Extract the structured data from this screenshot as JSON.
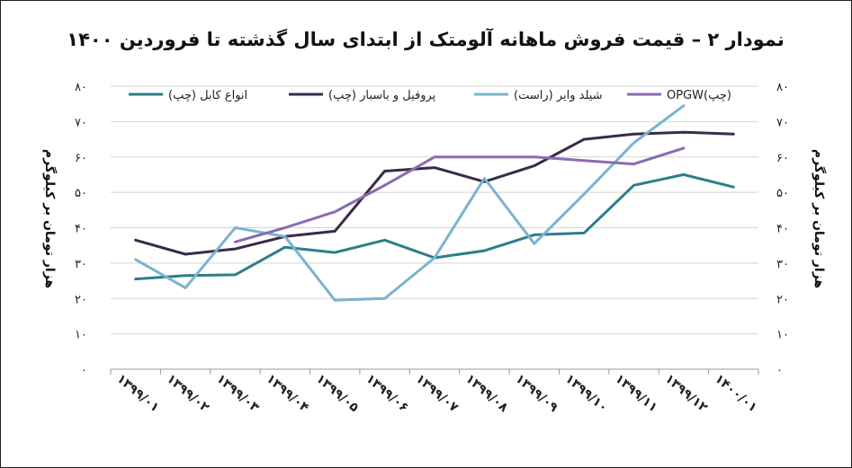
{
  "chart_data": {
    "type": "line",
    "title": "نمودار ۲ – قیمت فروش ماهانه آلومتک از ابتدای سال گذشته تا فروردین ۱۴۰۰",
    "ylabel_left": "هزار تومان بر کیلوگرم",
    "ylabel_right": "هزار تومان بر کیلوگرم",
    "ylim": [
      0,
      80
    ],
    "yticks": [
      0,
      10,
      20,
      30,
      40,
      50,
      60,
      70,
      80
    ],
    "ytick_labels": [
      "۰",
      "۱۰",
      "۲۰",
      "۳۰",
      "۴۰",
      "۵۰",
      "۶۰",
      "۷۰",
      "۸۰"
    ],
    "grid": true,
    "legend_position": "top",
    "categories": [
      "۱۳۹۹/۰۱",
      "۱۳۹۹/۰۲",
      "۱۳۹۹/۰۳",
      "۱۳۹۹/۰۴",
      "۱۳۹۹/۰۵",
      "۱۳۹۹/۰۶",
      "۱۳۹۹/۰۷",
      "۱۳۹۹/۰۸",
      "۱۳۹۹/۰۹",
      "۱۳۹۹/۱۰",
      "۱۳۹۹/۱۱",
      "۱۳۹۹/۱۲",
      "۱۴۰۰/۰۱"
    ],
    "series": [
      {
        "name": "انواع کابل (چپ)",
        "axis": "left",
        "color": "#2e7d8c",
        "values": [
          25.5,
          26.5,
          26.7,
          34.5,
          33.0,
          36.5,
          31.5,
          33.5,
          38.0,
          38.5,
          52.0,
          55.0,
          51.5
        ]
      },
      {
        "name": "پروفیل و باسبار (چپ)",
        "axis": "left",
        "color": "#3b2a4a",
        "values": [
          36.5,
          32.5,
          34.0,
          37.5,
          39.0,
          56.0,
          57.0,
          53.0,
          57.5,
          65.0,
          66.5,
          67.0,
          66.5
        ]
      },
      {
        "name": "شیلد وایر (راست)",
        "axis": "right",
        "color": "#7ab4cc",
        "values": [
          31.0,
          23.0,
          40.0,
          37.5,
          19.5,
          20.0,
          31.5,
          54.0,
          35.5,
          49.5,
          64.0,
          74.5,
          null
        ]
      },
      {
        "name": "OPGW(چپ)",
        "axis": "left",
        "color": "#8c6bb1",
        "values": [
          null,
          null,
          36.0,
          40.0,
          44.5,
          52.0,
          60.0,
          60.0,
          60.0,
          59.0,
          58.0,
          62.5,
          null
        ]
      }
    ]
  }
}
